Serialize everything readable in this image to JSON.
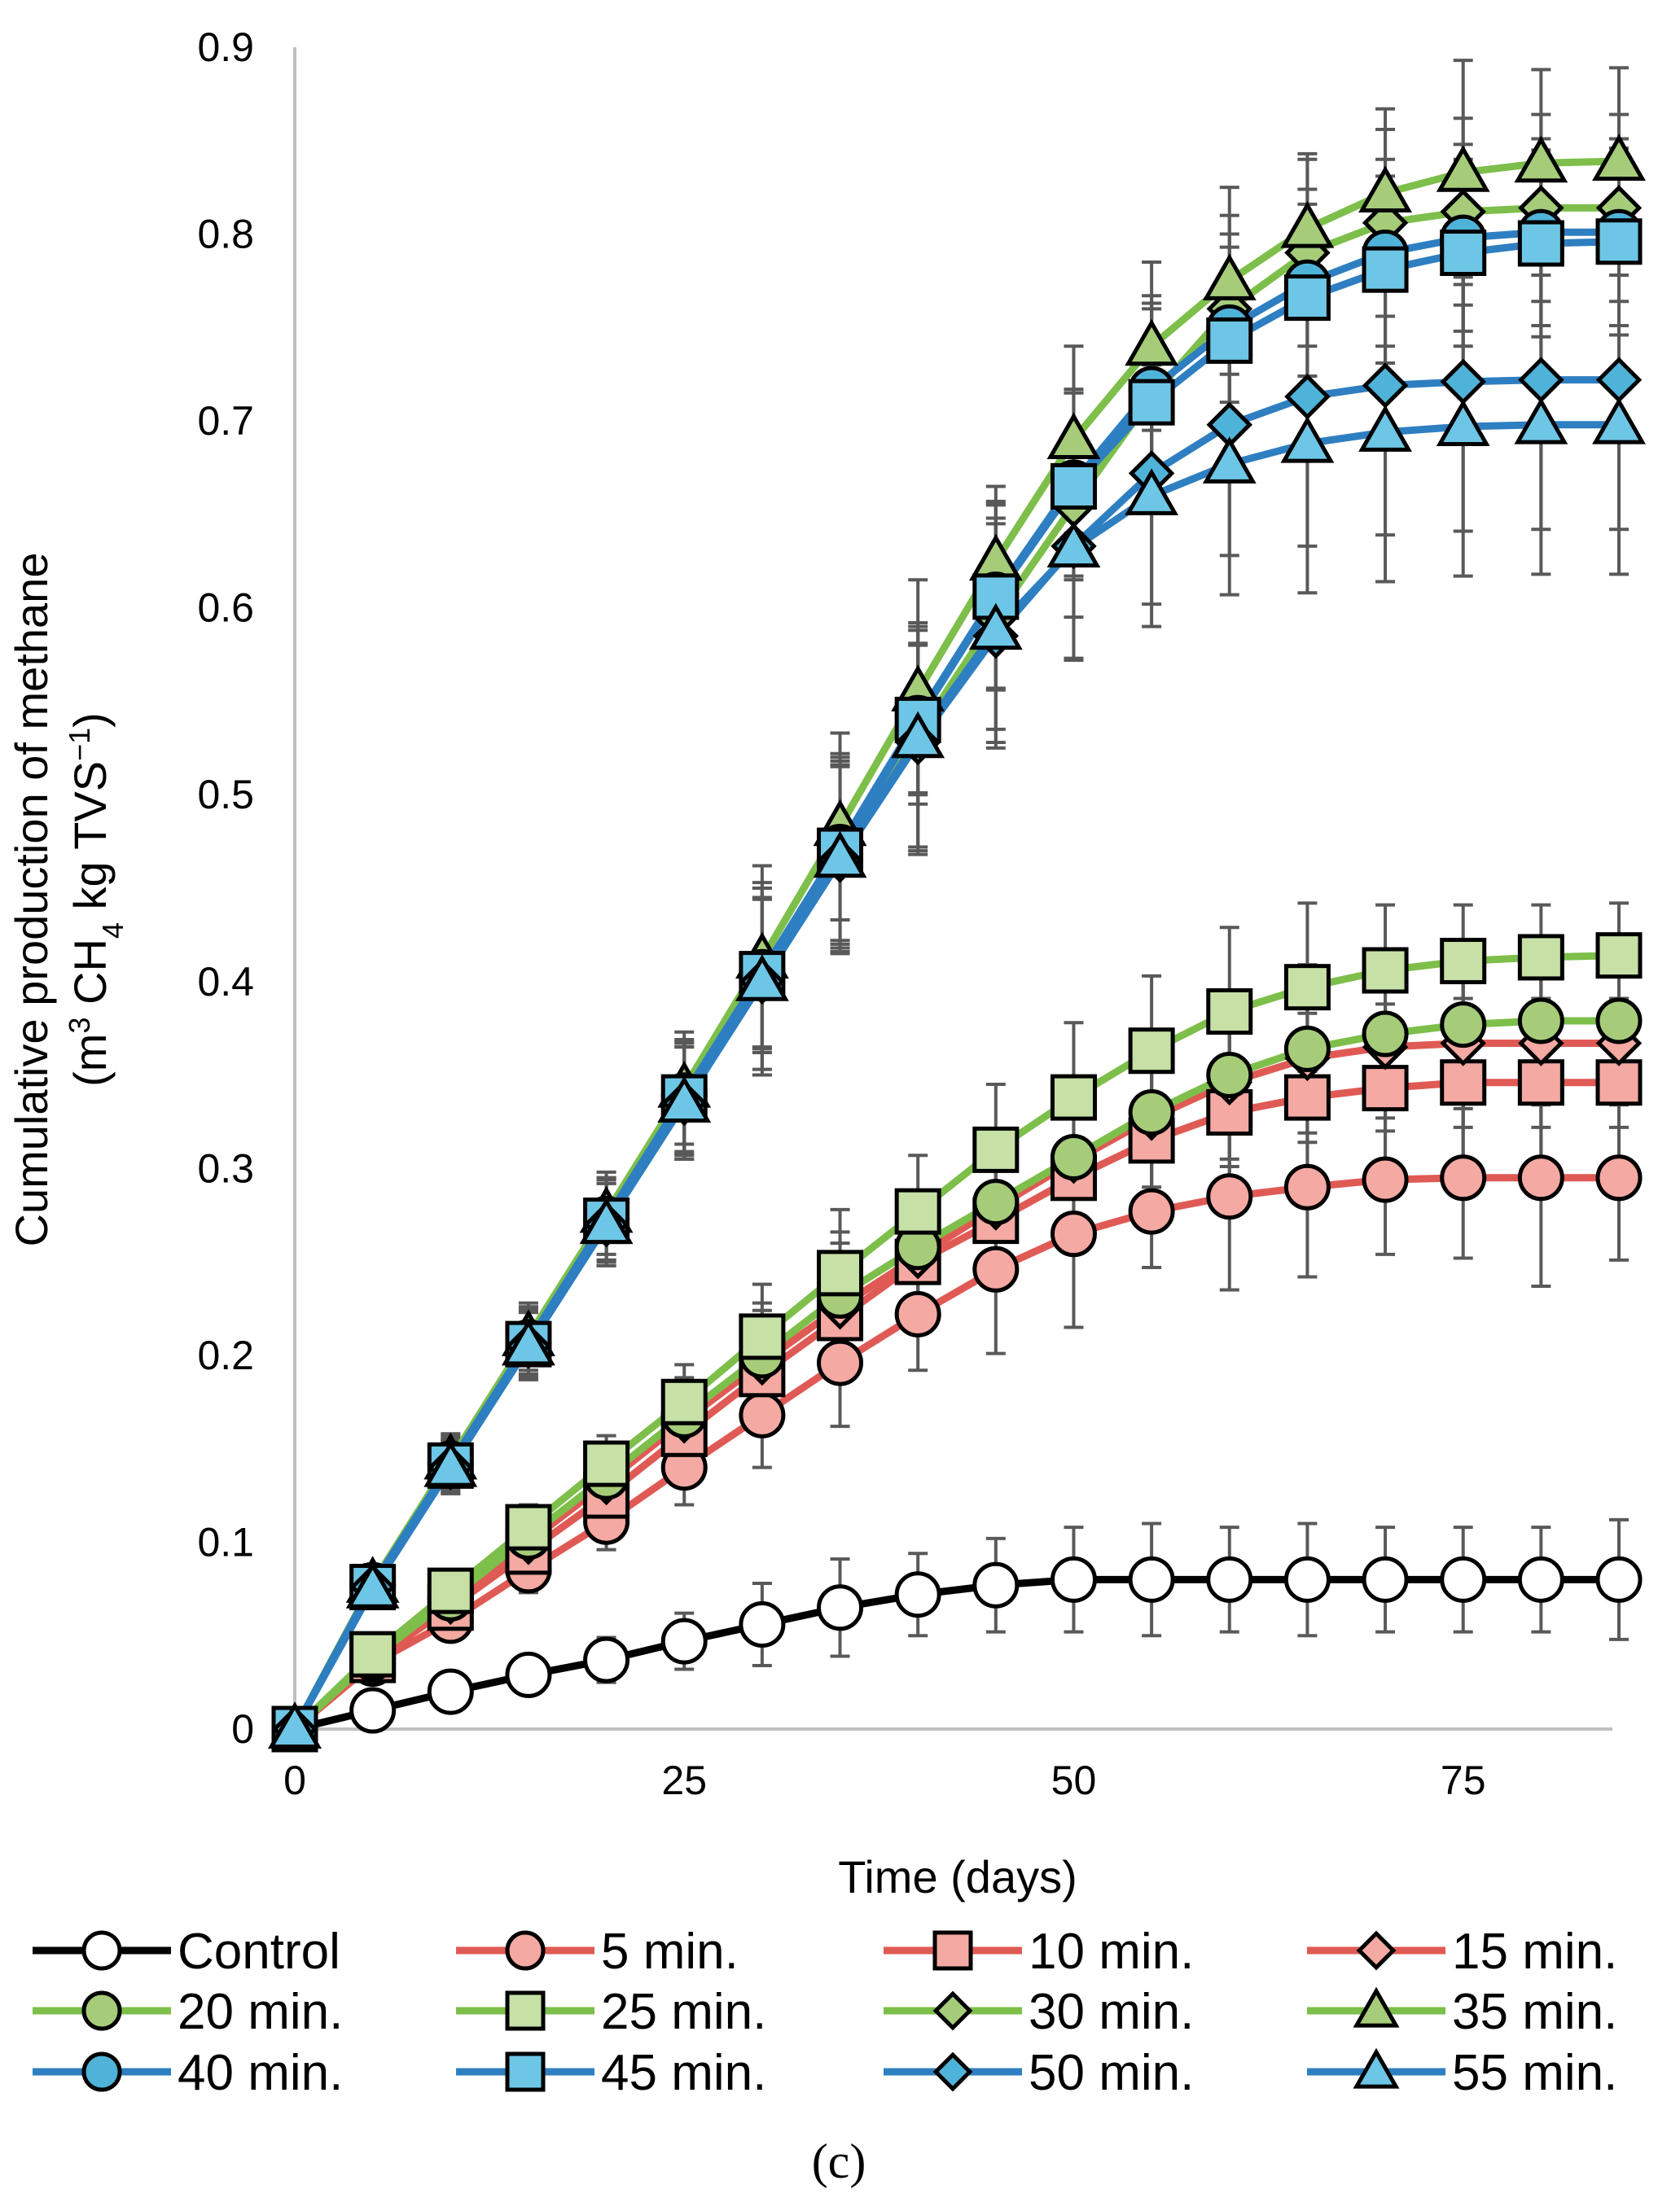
{
  "chart_data": {
    "type": "line",
    "panel_label": "(c)",
    "xlabel": "Time (days)",
    "ylabel_line1": "Cumulative production of methane",
    "ylabel_line2": {
      "pre": "(m",
      "sup1": "3",
      "mid": " CH",
      "sub": "4",
      "post": " kg TVS",
      "sup2": "−1",
      "close": ")"
    },
    "xlim": [
      0,
      85
    ],
    "ylim": [
      0,
      0.9
    ],
    "xticks": [
      0,
      25,
      50,
      75
    ],
    "xtick_labels": [
      "0",
      "25",
      "50",
      "75"
    ],
    "yticks": [
      0,
      0.1,
      0.2,
      0.3,
      0.4,
      0.5,
      0.6,
      0.7,
      0.8,
      0.9
    ],
    "ytick_labels": [
      "0",
      "0.1",
      "0.2",
      "0.3",
      "0.4",
      "0.5",
      "0.6",
      "0.7",
      "0.8",
      "0.9"
    ],
    "grid": false,
    "legend_position": "bottom",
    "x": [
      0,
      5,
      10,
      15,
      20,
      25,
      30,
      35,
      40,
      45,
      50,
      55,
      60,
      65,
      70,
      75,
      80,
      85
    ],
    "series": [
      {
        "name": "Control",
        "color": "#000000",
        "marker": "circle",
        "fill": "#ffffff",
        "values": [
          0,
          0.01,
          0.02,
          0.029,
          0.037,
          0.047,
          0.056,
          0.065,
          0.072,
          0.077,
          0.08,
          0.08,
          0.08,
          0.08,
          0.08,
          0.08,
          0.08,
          0.08
        ],
        "errors": [
          0,
          0.005,
          0.008,
          0.01,
          0.012,
          0.015,
          0.022,
          0.026,
          0.022,
          0.025,
          0.028,
          0.03,
          0.028,
          0.03,
          0.028,
          0.028,
          0.028,
          0.032
        ]
      },
      {
        "name": "5 min.",
        "color": "#e05a55",
        "marker": "circle",
        "fill": "#f4a9a3",
        "values": [
          0,
          0.035,
          0.058,
          0.085,
          0.111,
          0.14,
          0.168,
          0.196,
          0.222,
          0.246,
          0.265,
          0.277,
          0.285,
          0.29,
          0.294,
          0.295,
          0.295,
          0.295
        ],
        "errors": [
          0,
          0.006,
          0.01,
          0.012,
          0.015,
          0.02,
          0.028,
          0.034,
          0.03,
          0.045,
          0.05,
          0.03,
          0.05,
          0.048,
          0.04,
          0.043,
          0.058,
          0.044
        ]
      },
      {
        "name": "10 min.",
        "color": "#e05a55",
        "marker": "square",
        "fill": "#f4a9a3",
        "values": [
          0,
          0.037,
          0.065,
          0.095,
          0.125,
          0.158,
          0.19,
          0.22,
          0.25,
          0.272,
          0.295,
          0.315,
          0.33,
          0.338,
          0.343,
          0.346,
          0.346,
          0.346
        ],
        "errors": [
          0,
          0.006,
          0.01,
          0.012,
          0.015,
          0.02,
          0.028,
          0.034,
          0.03,
          0.035,
          0.04,
          0.04,
          0.045,
          0.045,
          0.045,
          0.045,
          0.045,
          0.045
        ]
      },
      {
        "name": "15 min.",
        "color": "#e05a55",
        "marker": "diamond",
        "fill": "#f4a9a3",
        "values": [
          0,
          0.038,
          0.068,
          0.1,
          0.132,
          0.165,
          0.196,
          0.226,
          0.253,
          0.279,
          0.304,
          0.327,
          0.346,
          0.359,
          0.365,
          0.367,
          0.367,
          0.367
        ],
        "errors": [
          0,
          0.006,
          0.01,
          0.012,
          0.015,
          0.02,
          0.028,
          0.034,
          0.03,
          0.035,
          0.04,
          0.04,
          0.045,
          0.045,
          0.045,
          0.045,
          0.045,
          0.045
        ]
      },
      {
        "name": "20 min.",
        "color": "#7dbf4a",
        "marker": "circle",
        "fill": "#a6cc7a",
        "values": [
          0,
          0.038,
          0.07,
          0.103,
          0.135,
          0.168,
          0.2,
          0.232,
          0.258,
          0.282,
          0.306,
          0.33,
          0.35,
          0.364,
          0.372,
          0.377,
          0.379,
          0.379
        ],
        "errors": [
          0,
          0.006,
          0.01,
          0.012,
          0.015,
          0.02,
          0.028,
          0.034,
          0.03,
          0.035,
          0.04,
          0.04,
          0.045,
          0.045,
          0.045,
          0.045,
          0.045,
          0.045
        ]
      },
      {
        "name": "25 min.",
        "color": "#7dbf4a",
        "marker": "square",
        "fill": "#c6e0a6",
        "values": [
          0,
          0.04,
          0.074,
          0.108,
          0.142,
          0.175,
          0.21,
          0.244,
          0.277,
          0.31,
          0.338,
          0.363,
          0.384,
          0.397,
          0.406,
          0.411,
          0.413,
          0.414
        ],
        "errors": [
          0,
          0.006,
          0.01,
          0.012,
          0.015,
          0.02,
          0.028,
          0.034,
          0.03,
          0.035,
          0.04,
          0.04,
          0.045,
          0.045,
          0.035,
          0.03,
          0.028,
          0.028
        ]
      },
      {
        "name": "30 min.",
        "color": "#7dbf4a",
        "marker": "diamond",
        "fill": "#a6cc7a",
        "values": [
          0,
          0.077,
          0.143,
          0.208,
          0.273,
          0.337,
          0.403,
          0.468,
          0.532,
          0.595,
          0.655,
          0.713,
          0.76,
          0.79,
          0.806,
          0.812,
          0.814,
          0.814
        ],
        "errors": [
          0,
          0.01,
          0.014,
          0.018,
          0.022,
          0.03,
          0.05,
          0.05,
          0.06,
          0.06,
          0.06,
          0.05,
          0.05,
          0.05,
          0.05,
          0.05,
          0.05,
          0.05
        ]
      },
      {
        "name": "35 min.",
        "color": "#7dbf4a",
        "marker": "triangle",
        "fill": "#a6cc7a",
        "values": [
          0,
          0.078,
          0.144,
          0.21,
          0.276,
          0.343,
          0.412,
          0.483,
          0.555,
          0.625,
          0.69,
          0.74,
          0.775,
          0.803,
          0.822,
          0.833,
          0.838,
          0.839
        ],
        "errors": [
          0,
          0.01,
          0.014,
          0.018,
          0.022,
          0.03,
          0.05,
          0.05,
          0.06,
          0.04,
          0.05,
          0.045,
          0.05,
          0.04,
          0.045,
          0.06,
          0.05,
          0.05
        ]
      },
      {
        "name": "40 min.",
        "color": "#2e7fc1",
        "marker": "circle",
        "fill": "#4fb3d9",
        "values": [
          0,
          0.077,
          0.142,
          0.207,
          0.273,
          0.339,
          0.405,
          0.472,
          0.541,
          0.607,
          0.667,
          0.717,
          0.75,
          0.774,
          0.79,
          0.798,
          0.801,
          0.801
        ],
        "errors": [
          0,
          0.01,
          0.014,
          0.018,
          0.022,
          0.03,
          0.04,
          0.05,
          0.04,
          0.05,
          0.05,
          0.05,
          0.05,
          0.05,
          0.05,
          0.05,
          0.05,
          0.05
        ]
      },
      {
        "name": "45 min.",
        "color": "#2e7fc1",
        "marker": "square",
        "fill": "#6ec6e6",
        "values": [
          0,
          0.076,
          0.141,
          0.206,
          0.272,
          0.338,
          0.404,
          0.47,
          0.54,
          0.606,
          0.665,
          0.71,
          0.743,
          0.766,
          0.781,
          0.79,
          0.795,
          0.796
        ],
        "errors": [
          0,
          0.01,
          0.014,
          0.018,
          0.022,
          0.03,
          0.04,
          0.05,
          0.04,
          0.05,
          0.05,
          0.05,
          0.05,
          0.05,
          0.05,
          0.05,
          0.05,
          0.05
        ]
      },
      {
        "name": "50 min.",
        "color": "#2e7fc1",
        "marker": "diamond",
        "fill": "#4fb3d9",
        "values": [
          0,
          0.076,
          0.14,
          0.205,
          0.27,
          0.335,
          0.4,
          0.465,
          0.528,
          0.585,
          0.633,
          0.672,
          0.698,
          0.713,
          0.719,
          0.721,
          0.722,
          0.722
        ],
        "errors": [
          0,
          0.01,
          0.014,
          0.018,
          0.022,
          0.03,
          0.05,
          0.05,
          0.06,
          0.06,
          0.06,
          0.07,
          0.07,
          0.08,
          0.08,
          0.08,
          0.08,
          0.08
        ]
      },
      {
        "name": "55 min.",
        "color": "#2e7fc1",
        "marker": "triangle",
        "fill": "#6ec6e6",
        "values": [
          0,
          0.075,
          0.14,
          0.205,
          0.27,
          0.335,
          0.4,
          0.466,
          0.53,
          0.588,
          0.632,
          0.66,
          0.677,
          0.688,
          0.694,
          0.697,
          0.698,
          0.698
        ],
        "errors": [
          0,
          0.01,
          0.014,
          0.018,
          0.022,
          0.03,
          0.05,
          0.05,
          0.06,
          0.06,
          0.06,
          0.07,
          0.07,
          0.08,
          0.08,
          0.08,
          0.08,
          0.08
        ]
      }
    ]
  }
}
